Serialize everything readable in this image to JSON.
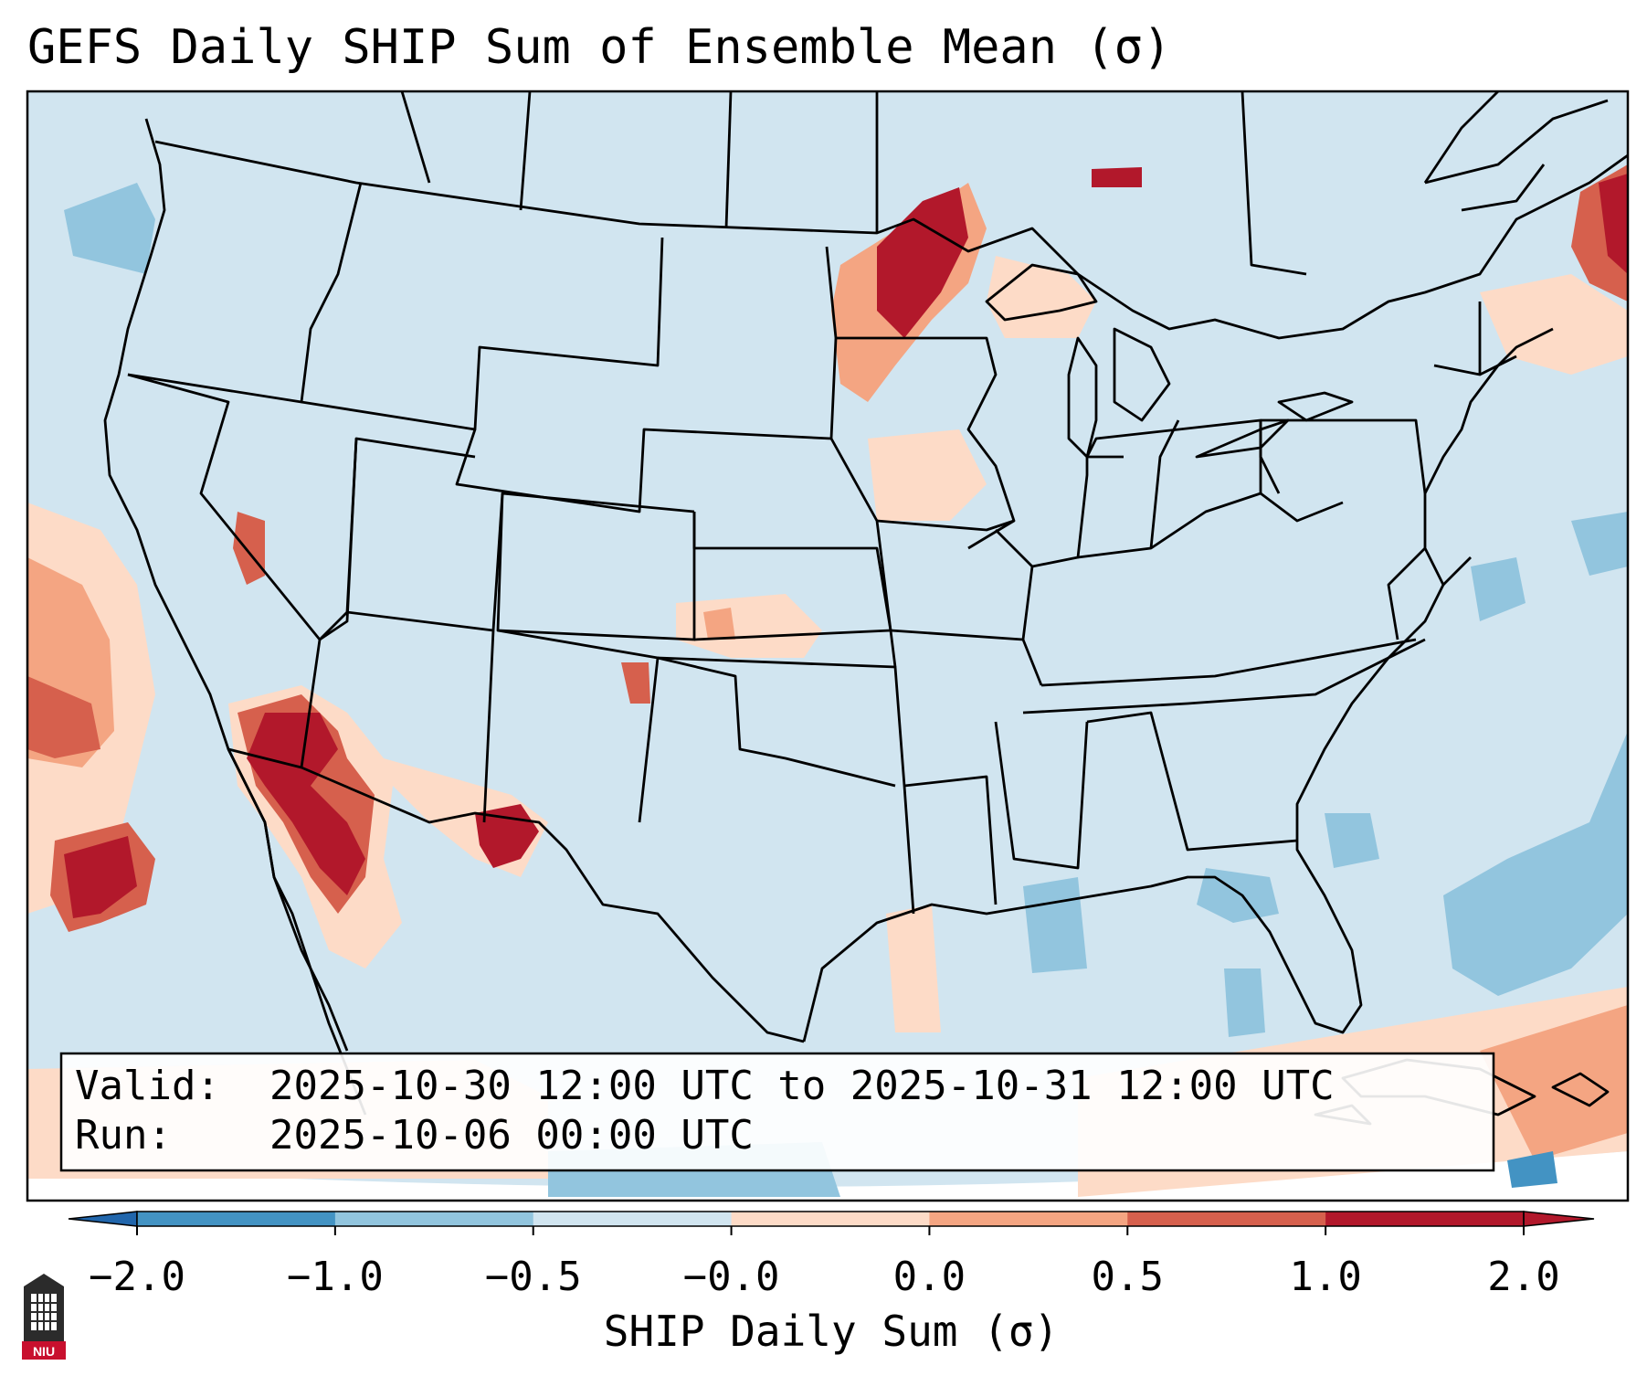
{
  "title": "GEFS Daily SHIP Sum of Ensemble Mean (σ)",
  "info": {
    "valid_label": "Valid:",
    "valid_value": "2025-10-30 12:00 UTC to 2025-10-31 12:00 UTC",
    "run_label": "Run:",
    "run_value": "2025-10-06 00:00 UTC"
  },
  "colorbar": {
    "label": "SHIP Daily Sum (σ)",
    "ticks": [
      "−2.0",
      "−1.0",
      "−0.5",
      "−0.0",
      "0.0",
      "0.5",
      "1.0",
      "2.0"
    ],
    "colors": [
      "#4393c3",
      "#92c5de",
      "#d1e5f0",
      "#fddbc7",
      "#f4a582",
      "#d6604d",
      "#b2182b"
    ],
    "extend_low_color": "#2166ac",
    "extend_high_color": "#b2182b"
  },
  "map": {
    "background_color": "#d1e5f0",
    "region": "Continental United States"
  },
  "logo": {
    "text": "NIU",
    "icon": "niu-tower-icon"
  }
}
